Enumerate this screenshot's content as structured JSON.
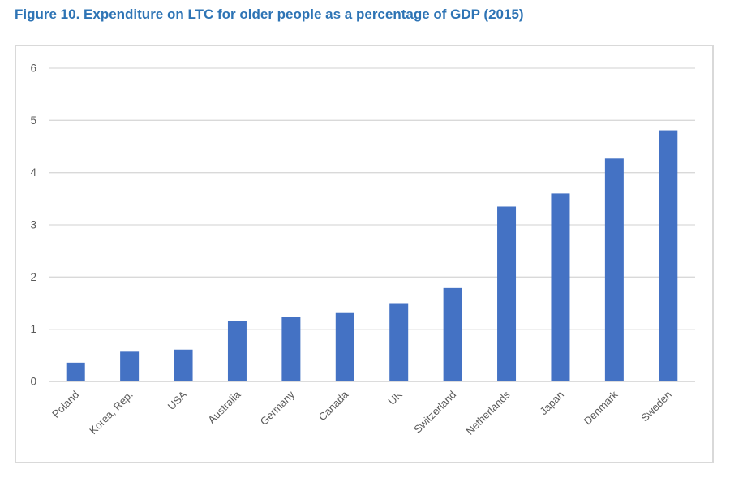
{
  "figure": {
    "title": "Figure 10. Expenditure on LTC for older people as a percentage of GDP (2015)",
    "title_color": "#2e74b5"
  },
  "chart_data": {
    "type": "bar",
    "title": "Figure 10. Expenditure on LTC for older people as a percentage of GDP (2015)",
    "categories": [
      "Poland",
      "Korea, Rep.",
      "USA",
      "Australia",
      "Germany",
      "Canada",
      "UK",
      "Switzerland",
      "Netherlands",
      "Japan",
      "Denmark",
      "Sweden"
    ],
    "values": [
      0.36,
      0.57,
      0.61,
      1.16,
      1.24,
      1.31,
      1.5,
      1.79,
      3.35,
      3.6,
      4.27,
      4.81
    ],
    "xlabel": "",
    "ylabel": "",
    "ylim": [
      0,
      6
    ],
    "yticks": [
      0,
      1,
      2,
      3,
      4,
      5,
      6
    ],
    "grid": true,
    "legend": false,
    "x_tick_rotation_deg": -45,
    "bar_color": "#4472c4",
    "axis_text_color": "#595959",
    "gridline_color": "#d9d9d9",
    "axis_line_color": "#c6c6c6",
    "plot_border_color": "#d9d9d9"
  }
}
